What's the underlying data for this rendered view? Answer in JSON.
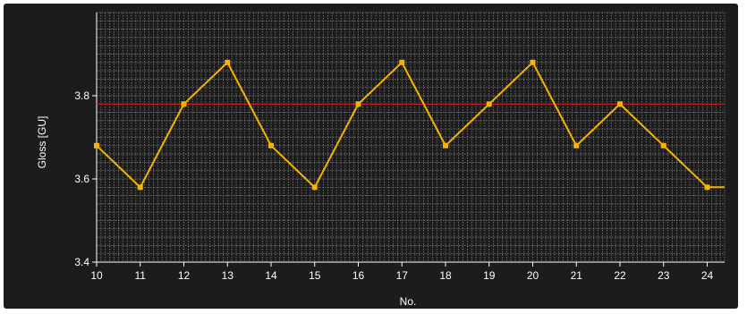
{
  "chart_data": {
    "type": "line",
    "title": "",
    "xlabel": "No.",
    "ylabel": "Gloss [GU]",
    "x": [
      10,
      11,
      12,
      13,
      14,
      15,
      16,
      17,
      18,
      19,
      20,
      21,
      22,
      23,
      24,
      24.4
    ],
    "series": [
      {
        "values": [
          3.68,
          3.58,
          3.78,
          3.88,
          3.68,
          3.58,
          3.78,
          3.88,
          3.68,
          3.78,
          3.88,
          3.68,
          3.78,
          3.68,
          3.58,
          3.58
        ],
        "color": "#f5b400"
      }
    ],
    "reference_line": {
      "value": 3.78,
      "color": "#cc2020"
    },
    "xlim": [
      10,
      24.4
    ],
    "ylim": [
      3.4,
      4.0
    ],
    "x_ticks": [
      "10",
      "11",
      "12",
      "13",
      "14",
      "15",
      "16",
      "17",
      "18",
      "19",
      "20",
      "21",
      "22",
      "23",
      "24"
    ],
    "y_ticks": [
      "3.4",
      "3.6",
      "3.8"
    ],
    "grid": true,
    "colors": {
      "background": "#1c1c1c",
      "grid": "#8a8a8a",
      "text": "#ffffff"
    }
  }
}
